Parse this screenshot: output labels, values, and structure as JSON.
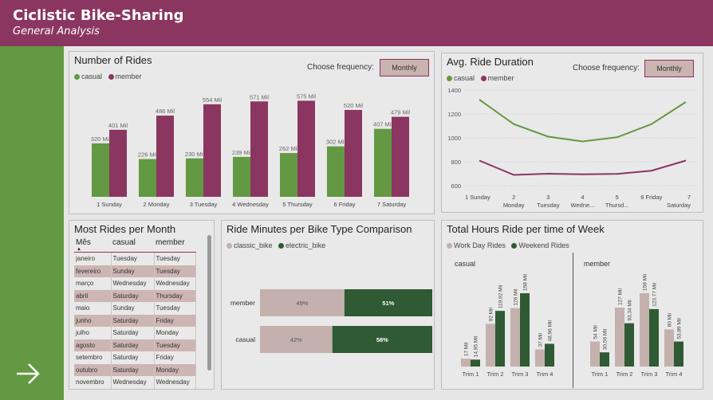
{
  "header": {
    "title": "Ciclistic Bike-Sharing",
    "subtitle": "General Analysis"
  },
  "nav": {
    "next_icon": "arrow-right-icon"
  },
  "colors": {
    "header": "#8a3660",
    "sidebar": "#639942",
    "casual": "#639942",
    "member": "#8a3660",
    "classic": "#c4b1ad",
    "electric": "#2f5a33",
    "workday": "#c4b1ad",
    "weekend": "#2f5a33"
  },
  "rides_panel": {
    "title": "Number of Rides",
    "freq_label": "Choose frequency:",
    "freq_value": "Monthly",
    "legend": [
      "casual",
      "member"
    ]
  },
  "duration_panel": {
    "title": "Avg. Ride Duration",
    "freq_label": "Choose frequency:",
    "freq_value": "Monthly",
    "legend": [
      "casual",
      "member"
    ]
  },
  "month_panel": {
    "title": "Most Rides per Month",
    "columns": [
      "Mês",
      "casual",
      "member"
    ],
    "rows": [
      [
        "janeiro",
        "Tuesday",
        "Tuesday"
      ],
      [
        "fevereiro",
        "Sunday",
        "Tuesday"
      ],
      [
        "março",
        "Wednesday",
        "Wednesday"
      ],
      [
        "abril",
        "Saturday",
        "Thursday"
      ],
      [
        "maio",
        "Sunday",
        "Tuesday"
      ],
      [
        "junho",
        "Saturday",
        "Friday"
      ],
      [
        "julho",
        "Saturday",
        "Monday"
      ],
      [
        "agosto",
        "Saturday",
        "Tuesday"
      ],
      [
        "setembro",
        "Saturday",
        "Friday"
      ],
      [
        "outubro",
        "Saturday",
        "Monday"
      ],
      [
        "novembro",
        "Wednesday",
        "Wednesday"
      ]
    ]
  },
  "bike_panel": {
    "title": "Ride Minutes per Bike Type Comparison",
    "legend": [
      "classic_bike",
      "electric_bike"
    ]
  },
  "hours_panel": {
    "title": "Total Hours Ride per time of Week",
    "legend": [
      "Work Day Rides",
      "Weekend Rides"
    ]
  },
  "chart_data": [
    {
      "type": "bar",
      "title": "Number of Rides",
      "categories": [
        "1 Sunday",
        "2 Monday",
        "3 Tuesday",
        "4 Wednesday",
        "5 Thursday",
        "6 Friday",
        "7 Saturday"
      ],
      "series": [
        {
          "name": "casual",
          "values": [
            320,
            226,
            230,
            239,
            262,
            302,
            407
          ],
          "labels": [
            "320 Mil",
            "226 Mil",
            "230 Mil",
            "239 Mil",
            "262 Mil",
            "302 Mil",
            "407 Mil"
          ]
        },
        {
          "name": "member",
          "values": [
            401,
            486,
            554,
            571,
            575,
            520,
            479
          ],
          "labels": [
            "401 Mil",
            "486 Mil",
            "554 Mil",
            "571 Mil",
            "575 Mil",
            "520 Mil",
            "479 Mil"
          ]
        }
      ],
      "ylim": [
        0,
        620
      ]
    },
    {
      "type": "line",
      "title": "Avg. Ride Duration",
      "categories": [
        "1 Sunday",
        "2 Monday",
        "3 Tuesday",
        "4 Wedne...",
        "5 Thursd...",
        "6 Friday",
        "7 Saturday"
      ],
      "series": [
        {
          "name": "casual",
          "values": [
            1320,
            1115,
            1010,
            970,
            1005,
            1115,
            1300
          ]
        },
        {
          "name": "member",
          "values": [
            810,
            690,
            700,
            695,
            698,
            725,
            810
          ]
        }
      ],
      "yticks": [
        1400,
        1200,
        1000,
        800,
        600
      ],
      "ylim": [
        560,
        1420
      ],
      "grid": true
    },
    {
      "type": "bar",
      "title": "Ride Minutes per Bike Type Comparison",
      "stacked": "100%",
      "categories": [
        "member",
        "casual"
      ],
      "series": [
        {
          "name": "classic_bike",
          "values": [
            49,
            42
          ],
          "labels": [
            "49%",
            "42%"
          ]
        },
        {
          "name": "electric_bike",
          "values": [
            51,
            58
          ],
          "labels": [
            "51%",
            "58%"
          ]
        }
      ]
    },
    {
      "type": "bar",
      "title": "Total Hours Ride per time of Week",
      "facets": [
        {
          "name": "casual",
          "categories": [
            "Trim 1",
            "Trim 2",
            "Trim 3",
            "Trim 4"
          ],
          "series": [
            {
              "name": "Work Day Rides",
              "values": [
                17,
                92,
                126,
                37
              ],
              "labels": [
                "17 Mil",
                "92 Mil",
                "126 Mil",
                "37 Mil"
              ]
            },
            {
              "name": "Weekend Rides",
              "values": [
                14.95,
                119.92,
                158,
                48.96
              ],
              "labels": [
                "14,95 Mil",
                "119,92 Mil",
                "158 Mil",
                "48,96 Mil"
              ]
            }
          ]
        },
        {
          "name": "member",
          "categories": [
            "Trim 1",
            "Trim 2",
            "Trim 3",
            "Trim 4"
          ],
          "series": [
            {
              "name": "Work Day Rides",
              "values": [
                54,
                127,
                158,
                80
              ],
              "labels": [
                "54 Mil",
                "127 Mil",
                "158 Mil",
                "80 Mil"
              ]
            },
            {
              "name": "Weekend Rides",
              "values": [
                30.56,
                93.34,
                123.77,
                53.89
              ],
              "labels": [
                "30,56 Mil",
                "93,34 Mil",
                "123,77 Mil",
                "53,89 Mil"
              ]
            }
          ]
        }
      ],
      "ylim": [
        0,
        170
      ]
    }
  ]
}
